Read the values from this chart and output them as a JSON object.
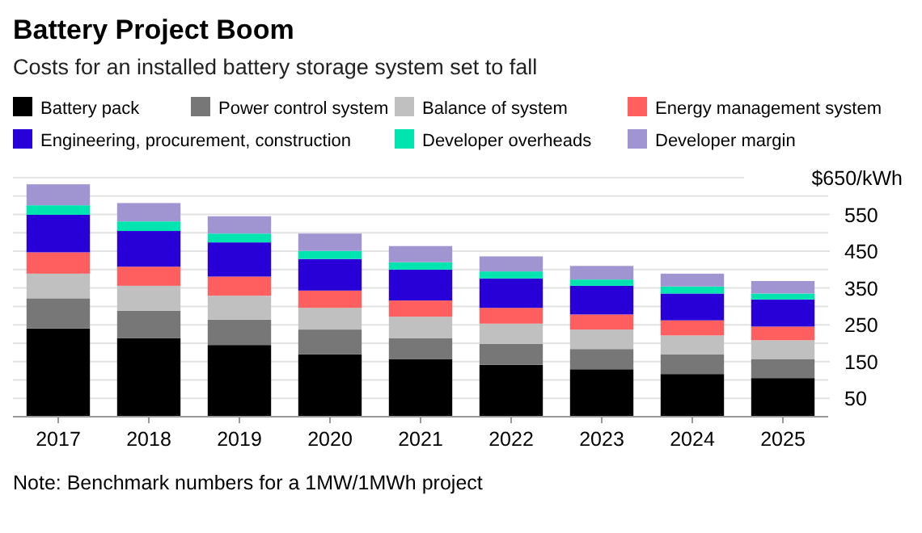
{
  "chart_data": {
    "type": "bar",
    "title": "Battery Project Boom",
    "subtitle": "Costs for an installed battery storage system set to fall",
    "categories": [
      "2017",
      "2018",
      "2019",
      "2020",
      "2021",
      "2022",
      "2023",
      "2024",
      "2025"
    ],
    "stacked": true,
    "legend": "top",
    "grid": "y",
    "series": [
      {
        "name": "Battery pack",
        "color": "#000000",
        "values": [
          240,
          214,
          195,
          170,
          157,
          141,
          129,
          116,
          105
        ]
      },
      {
        "name": "Power control system",
        "color": "#777777",
        "values": [
          82,
          74,
          69,
          67,
          57,
          57,
          55,
          54,
          52
        ]
      },
      {
        "name": "Balance of system",
        "color": "#c0c0c0",
        "values": [
          67,
          68,
          65,
          59,
          58,
          55,
          53,
          51,
          51
        ]
      },
      {
        "name": "Energy management system",
        "color": "#ff5f5f",
        "values": [
          58,
          52,
          52,
          47,
          44,
          43,
          41,
          41,
          37
        ]
      },
      {
        "name": "Engineering, procurement, construction",
        "color": "#2800d7",
        "values": [
          102,
          97,
          93,
          86,
          84,
          80,
          78,
          73,
          74
        ]
      },
      {
        "name": "Developer overheads",
        "color": "#00e5b0",
        "values": [
          26,
          26,
          24,
          22,
          20,
          19,
          17,
          19,
          16
        ]
      },
      {
        "name": "Developer margin",
        "color": "#a195d1",
        "values": [
          57,
          50,
          47,
          47,
          44,
          41,
          37,
          35,
          34
        ]
      }
    ],
    "ylim": [
      0,
      650
    ],
    "yticks": [
      50,
      {
        "value": 100,
        "label": null
      },
      150,
      {
        "value": 200,
        "label": null
      },
      250,
      {
        "value": 300,
        "label": null
      },
      350,
      {
        "value": 400,
        "label": null
      },
      450,
      {
        "value": 500,
        "label": null
      },
      550,
      {
        "value": 600,
        "label": null
      },
      {
        "value": 650,
        "label": "$650/kWh"
      }
    ],
    "annotations": [
      "Note: Benchmark numbers for a 1MW/1MWh project"
    ]
  }
}
